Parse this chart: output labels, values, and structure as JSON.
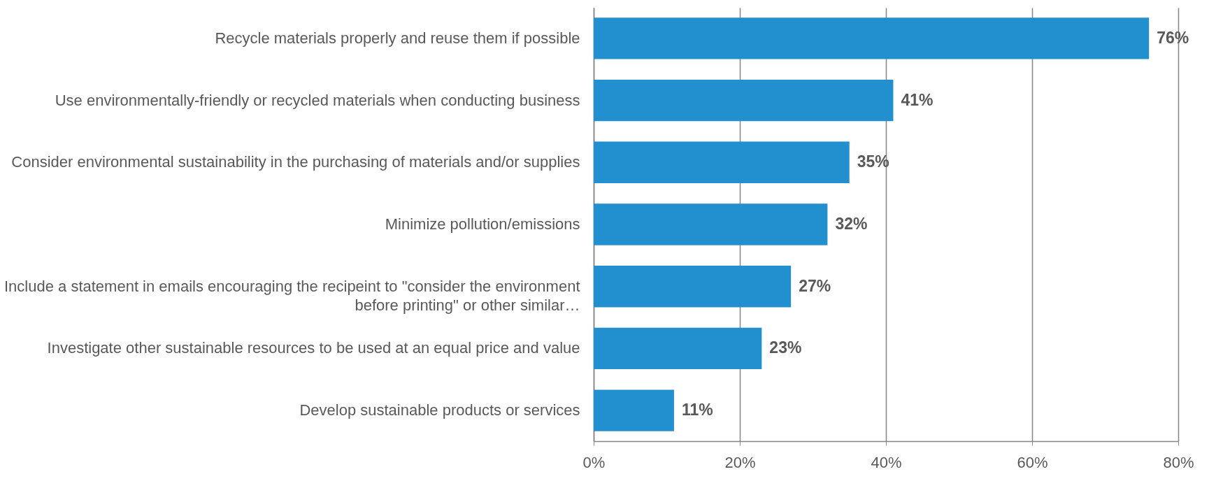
{
  "chart_data": {
    "type": "bar",
    "orientation": "horizontal",
    "categories": [
      "Recycle materials properly and reuse them if possible",
      "Use environmentally-friendly or recycled materials when conducting business",
      "Consider environmental sustainability in the purchasing of materials and/or supplies",
      "Minimize pollution/emissions",
      "Include a statement in emails encouraging the recipeint to \"consider the environment before printing\" or other similar…",
      "Investigate other sustainable resources to be used at an equal price and value",
      "Develop sustainable products or services"
    ],
    "values": [
      76,
      41,
      35,
      32,
      27,
      23,
      11
    ],
    "value_labels": [
      "76%",
      "41%",
      "35%",
      "32%",
      "27%",
      "23%",
      "11%"
    ],
    "color": "#228fcf",
    "xlim": [
      0,
      80
    ],
    "xticks": [
      {
        "value": 0,
        "label": "0%"
      },
      {
        "value": 20,
        "label": "20%"
      },
      {
        "value": 40,
        "label": "40%"
      },
      {
        "value": 60,
        "label": "60%"
      },
      {
        "value": 80,
        "label": "80%"
      }
    ],
    "grid": "x"
  }
}
